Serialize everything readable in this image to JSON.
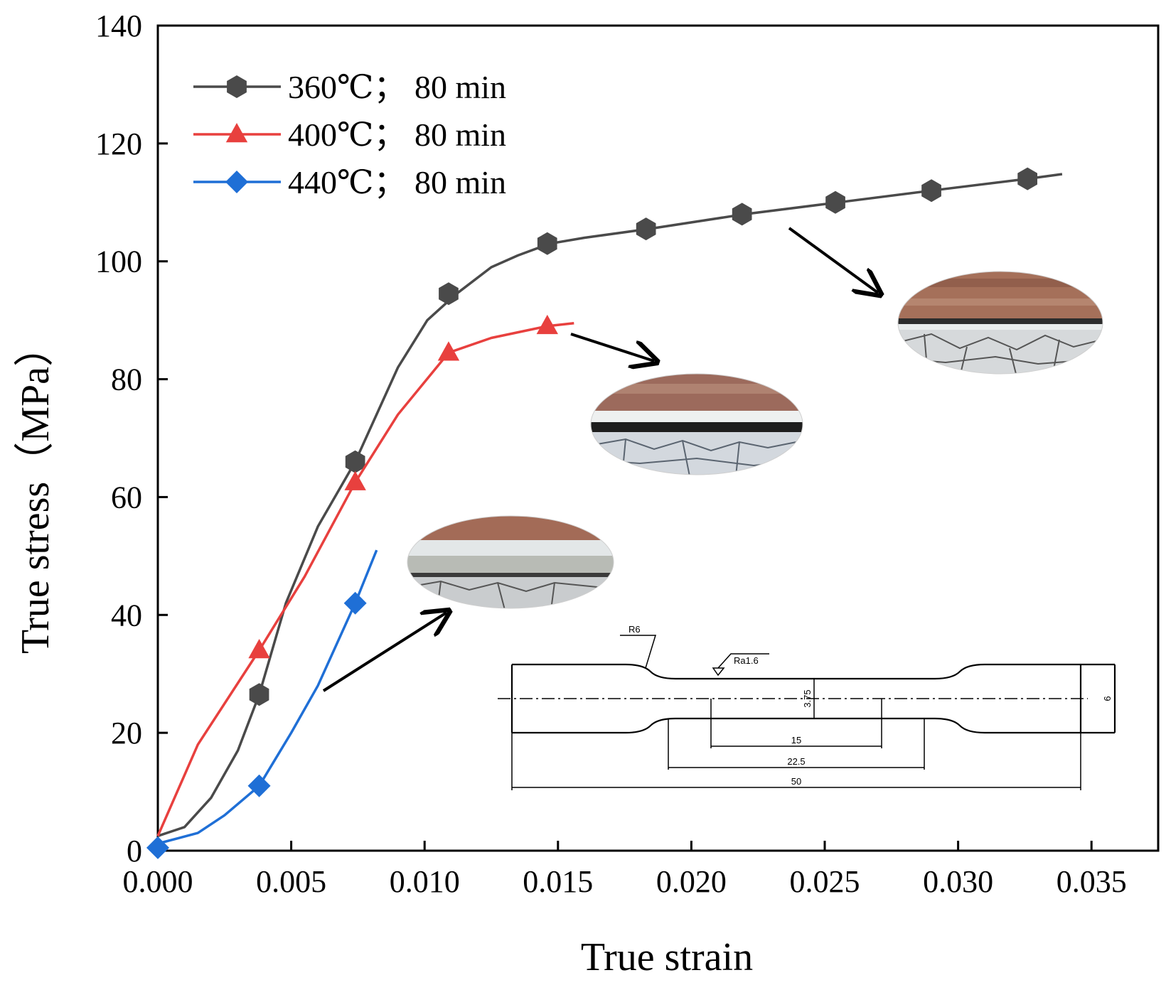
{
  "chart_data": {
    "type": "line",
    "title": "",
    "xlabel": "True strain",
    "ylabel": "True stress（MPa）",
    "xlim": [
      0,
      0.0375
    ],
    "ylim": [
      0,
      140
    ],
    "xticks": [
      "0.000",
      "0.005",
      "0.010",
      "0.015",
      "0.020",
      "0.025",
      "0.030",
      "0.035"
    ],
    "xtick_values": [
      0,
      0.005,
      0.01,
      0.015,
      0.02,
      0.025,
      0.03,
      0.035
    ],
    "yticks": [
      "0",
      "20",
      "40",
      "60",
      "80",
      "100",
      "120",
      "140"
    ],
    "ytick_values": [
      0,
      20,
      40,
      60,
      80,
      100,
      120,
      140
    ],
    "legend_position": "top-left",
    "series": [
      {
        "name": "360℃； 80 min",
        "color": "#4a4a4a",
        "marker": "hexagon",
        "x": [
          0,
          0.001,
          0.002,
          0.003,
          0.0038,
          0.0048,
          0.006,
          0.0074,
          0.009,
          0.0101,
          0.0112,
          0.0125,
          0.0135,
          0.0147,
          0.016,
          0.0184,
          0.022,
          0.0255,
          0.029,
          0.0326,
          0.0339
        ],
        "y": [
          2.5,
          4,
          9,
          17,
          26.5,
          42,
          55,
          66,
          82,
          90,
          94.5,
          99,
          101,
          103,
          104,
          105.5,
          108,
          110,
          112,
          114,
          114.8
        ],
        "marker_x": [
          0.0038,
          0.0074,
          0.0109,
          0.0146,
          0.0183,
          0.0219,
          0.0254,
          0.029,
          0.0326
        ],
        "marker_y": [
          26.5,
          66,
          94.5,
          103,
          105.5,
          108,
          110,
          112,
          114
        ]
      },
      {
        "name": "400℃； 80 min",
        "color": "#e8403e",
        "marker": "triangle",
        "x": [
          0,
          0.0015,
          0.0038,
          0.0055,
          0.0074,
          0.009,
          0.0109,
          0.0125,
          0.0146,
          0.0156
        ],
        "y": [
          2.5,
          18,
          34,
          46.5,
          62.5,
          74,
          84.5,
          87,
          89,
          89.5
        ],
        "marker_x": [
          0.0038,
          0.0074,
          0.0109,
          0.0146
        ],
        "marker_y": [
          34,
          62.5,
          84.5,
          89
        ]
      },
      {
        "name": "440℃； 80 min",
        "color": "#1f6fd6",
        "marker": "diamond",
        "x": [
          0,
          0.0015,
          0.0025,
          0.0038,
          0.005,
          0.006,
          0.0074,
          0.0082
        ],
        "y": [
          1.2,
          3,
          6,
          11,
          20,
          28,
          42,
          51
        ],
        "marker_x": [
          0,
          0.0038,
          0.0074
        ],
        "marker_y": [
          0.5,
          11,
          42
        ]
      }
    ],
    "inset_labels": {
      "r": "R6",
      "ra": "Ra1.6",
      "d1": "3.75",
      "d2": "6",
      "l1": "15",
      "l2": "22.5",
      "l3": "50"
    }
  }
}
